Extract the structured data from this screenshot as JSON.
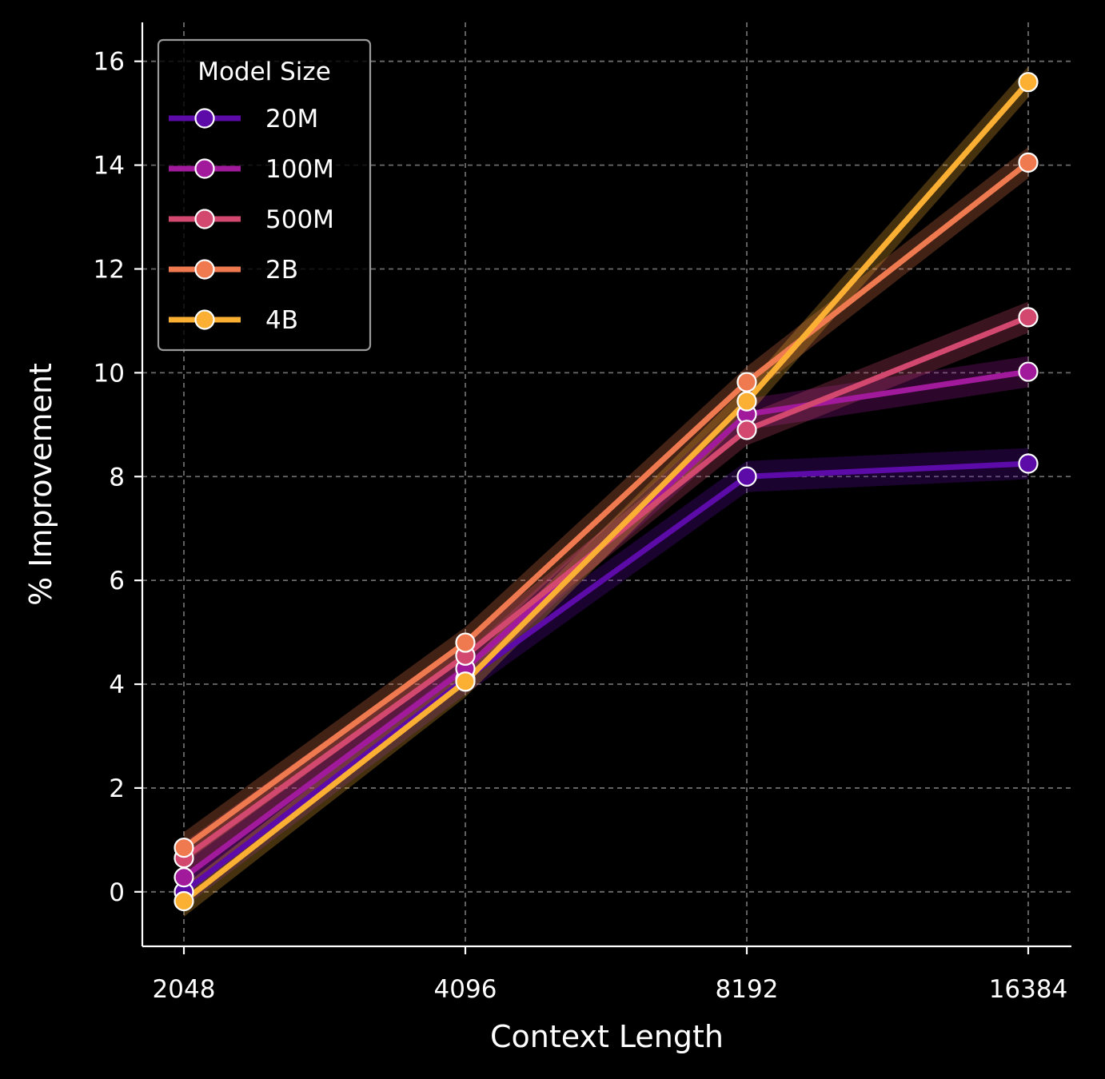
{
  "chart_data": {
    "type": "line",
    "xlabel": "Context Length",
    "ylabel": "% Improvement",
    "x_scale": "log2",
    "x": [
      2048,
      4096,
      8192,
      16384
    ],
    "x_tick_labels": [
      "2048",
      "4096",
      "8192",
      "16384"
    ],
    "ylim": [
      -1.05,
      16.75
    ],
    "y_ticks": [
      0,
      2,
      4,
      6,
      8,
      10,
      12,
      14,
      16
    ],
    "grid": true,
    "legend": {
      "title": "Model Size",
      "position": "top-left"
    },
    "series": [
      {
        "name": "20M",
        "color": "#5c0aa8",
        "values": [
          0.0,
          4.1,
          8.0,
          8.25
        ],
        "band": 0.3
      },
      {
        "name": "100M",
        "color": "#a21a9c",
        "values": [
          0.28,
          4.3,
          9.2,
          10.02
        ],
        "band": 0.3
      },
      {
        "name": "500M",
        "color": "#d2486f",
        "values": [
          0.65,
          4.55,
          8.9,
          11.07
        ],
        "band": 0.3
      },
      {
        "name": "2B",
        "color": "#f07a50",
        "values": [
          0.85,
          4.8,
          9.82,
          14.05
        ],
        "band": 0.3
      },
      {
        "name": "4B",
        "color": "#fbb034",
        "values": [
          -0.18,
          4.05,
          9.45,
          15.6
        ],
        "band": 0.3
      }
    ]
  }
}
